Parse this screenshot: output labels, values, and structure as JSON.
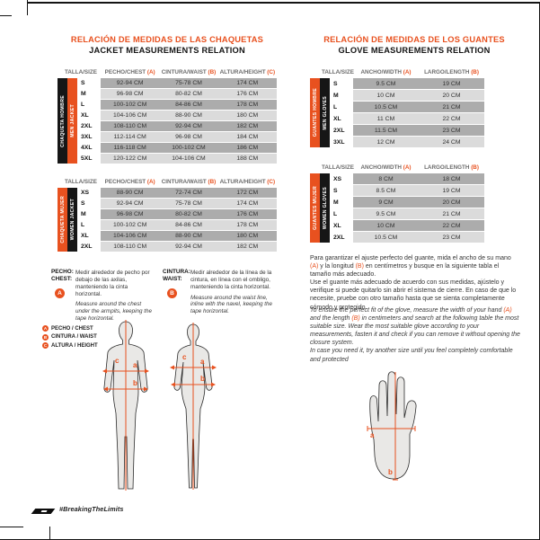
{
  "colors": {
    "accent": "#E8511F",
    "bar_black": "#161616",
    "row_dark": "#ACACAC",
    "row_light": "#DBDBDB"
  },
  "jackets": {
    "title_es": "RELACIÓN DE MEDIDAS DE LAS CHAQUETAS",
    "title_en": "JACKET MEASUREMENTS RELATION",
    "header": {
      "size": "TALLA/SIZE",
      "cols": [
        {
          "label": "PECHO/CHEST",
          "letter": "(A)"
        },
        {
          "label": "CINTURA/WAIST",
          "letter": "(B)"
        },
        {
          "label": "ALTURA/HEIGHT",
          "letter": "(C)"
        }
      ]
    },
    "men": {
      "side_outer": "CHAQUETA HOMBRE",
      "side_inner": "MEN JACKET",
      "rows": [
        [
          "S",
          "92-94 CM",
          "75-78 CM",
          "174 CM"
        ],
        [
          "M",
          "96-98 CM",
          "80-82 CM",
          "176 CM"
        ],
        [
          "L",
          "100-102 CM",
          "84-86 CM",
          "178 CM"
        ],
        [
          "XL",
          "104-106 CM",
          "88-90 CM",
          "180 CM"
        ],
        [
          "2XL",
          "108-110 CM",
          "92-94 CM",
          "182 CM"
        ],
        [
          "3XL",
          "112-114 CM",
          "96-98 CM",
          "184 CM"
        ],
        [
          "4XL",
          "116-118 CM",
          "100-102 CM",
          "186 CM"
        ],
        [
          "5XL",
          "120-122 CM",
          "104-106 CM",
          "188 CM"
        ]
      ]
    },
    "women": {
      "side_outer": "CHAQUETA MUJER",
      "side_inner": "WOMEN JACKET",
      "rows": [
        [
          "XS",
          "88-90 CM",
          "72-74 CM",
          "172 CM"
        ],
        [
          "S",
          "92-94 CM",
          "75-78 CM",
          "174 CM"
        ],
        [
          "M",
          "96-98 CM",
          "80-82 CM",
          "176 CM"
        ],
        [
          "L",
          "100-102 CM",
          "84-86 CM",
          "178 CM"
        ],
        [
          "XL",
          "104-106 CM",
          "88-90 CM",
          "180 CM"
        ],
        [
          "2XL",
          "108-110 CM",
          "92-94 CM",
          "182 CM"
        ]
      ]
    }
  },
  "gloves": {
    "title_es": "RELACIÓN DE MEDIDAS DE LOS GUANTES",
    "title_en": "GLOVE MEASUREMENTS RELATION",
    "header": {
      "size": "TALLA/SIZE",
      "cols": [
        {
          "label": "ANCHO/WIDTH",
          "letter": "(A)"
        },
        {
          "label": "LARGO/LENGTH",
          "letter": "(B)"
        }
      ]
    },
    "men": {
      "side_outer": "GUANTES HOMBRE",
      "side_inner": "MEN GLOVES",
      "rows": [
        [
          "S",
          "9.5 CM",
          "19 CM"
        ],
        [
          "M",
          "10 CM",
          "20 CM"
        ],
        [
          "L",
          "10.5 CM",
          "21 CM"
        ],
        [
          "XL",
          "11 CM",
          "22 CM"
        ],
        [
          "2XL",
          "11.5 CM",
          "23 CM"
        ],
        [
          "3XL",
          "12 CM",
          "24 CM"
        ]
      ]
    },
    "women": {
      "side_outer": "GUANTES MUJER",
      "side_inner": "WOMEN GLOVES",
      "rows": [
        [
          "XS",
          "8 CM",
          "18 CM"
        ],
        [
          "S",
          "8.5 CM",
          "19 CM"
        ],
        [
          "M",
          "9 CM",
          "20 CM"
        ],
        [
          "L",
          "9.5 CM",
          "21 CM"
        ],
        [
          "XL",
          "10 CM",
          "22 CM"
        ],
        [
          "2XL",
          "10.5 CM",
          "23 CM"
        ]
      ]
    },
    "note_es": {
      "parts": [
        "Para garantizar el ajuste perfecto del guante, mida el ancho de su mano ",
        "(A)",
        " y la longitud ",
        "(B)",
        " en centímetros y busque en la siguiente tabla el tamaño más adecuado."
      ],
      "p2": "Use el guante más adecuado de acuerdo con sus medidas, ajústelo y verifique si puede quitarlo sin abrir el sistema de cierre. En caso de que lo necesite, pruebe con otro tamaño hasta que se sienta completamente cómodo y protegido."
    },
    "note_en": {
      "parts": [
        "To ensure the perfect fit of the glove, measure the width of your hand ",
        "(A)",
        " and the length ",
        "(B)",
        " in centimeters and search at the following table the most suitable size. Wear the most suitable glove according to your measurements, fasten it and check if you can remove it without opening the closure system."
      ],
      "p2": "In case you need it, try another size until you feel completely comfortable and protected"
    }
  },
  "measure_guide": {
    "chest": {
      "label_es": "PECHO:",
      "label_en": "CHEST:",
      "letter": "A",
      "text_es": "Medir alrededor de pecho por debajo de las axilas, manteniendo la cinta horizontal.",
      "text_en": "Measure around the chest under the armpits, keeping the tape horizontal."
    },
    "waist": {
      "label_es": "CINTURA:",
      "label_en": "WAIST:",
      "letter": "B",
      "text_es": "Medir alrededor de la línea de la cintura, en línea con el ombligo, manteniendo la cinta horizontal.",
      "text_en": "Measure around the waist line, inline with the navel, keeping the tape horizontal."
    },
    "legend": [
      {
        "letter": "A",
        "label": "PECHO / CHEST"
      },
      {
        "letter": "B",
        "label": "CINTURA / WAIST"
      },
      {
        "letter": "C",
        "label": "ALTURA / HEIGHT"
      }
    ],
    "figure_labels": {
      "chest": "a",
      "waist": "b",
      "height": "c"
    },
    "hand_labels": {
      "width": "a",
      "length": "b"
    }
  },
  "footer": {
    "hashtag": "#BreakingTheLimits"
  }
}
